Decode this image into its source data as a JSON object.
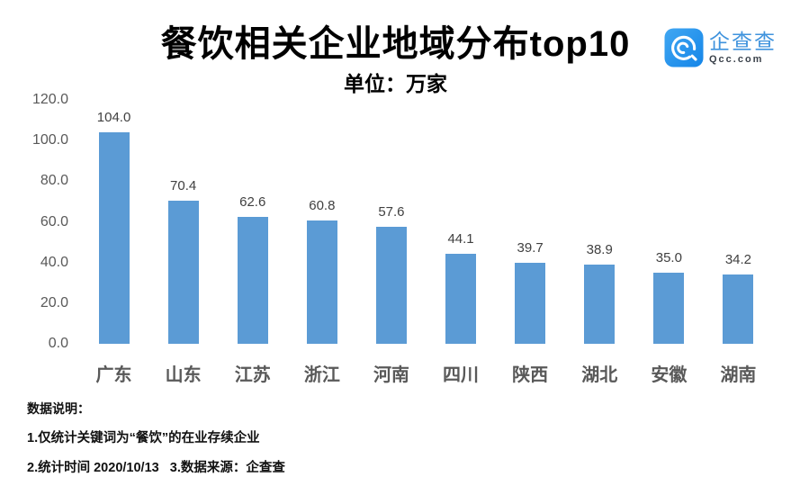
{
  "header": {
    "title": "餐饮相关企业地域分布top10",
    "subtitle": "单位：万家"
  },
  "logo": {
    "name": "企查查",
    "domain": "Qcc.com",
    "brand_color": "#2492e6"
  },
  "chart_data": {
    "type": "bar",
    "title": "餐饮相关企业地域分布top10",
    "unit_label": "单位：万家",
    "categories": [
      "广东",
      "山东",
      "江苏",
      "浙江",
      "河南",
      "四川",
      "陕西",
      "湖北",
      "安徽",
      "湖南"
    ],
    "values": [
      104.0,
      70.4,
      62.6,
      60.8,
      57.6,
      44.1,
      39.7,
      38.9,
      35.0,
      34.2
    ],
    "value_labels": [
      "104.0",
      "70.4",
      "62.6",
      "60.8",
      "57.6",
      "44.1",
      "39.7",
      "38.9",
      "35.0",
      "34.2"
    ],
    "xlabel": "",
    "ylabel": "",
    "ylim": [
      0,
      120
    ],
    "yticks": [
      "120.0",
      "100.0",
      "80.0",
      "60.0",
      "40.0",
      "20.0",
      "0.0"
    ],
    "grid": false,
    "legend": false,
    "bar_color": "#5b9bd5"
  },
  "notes": {
    "heading": "数据说明：",
    "lines": [
      "1.仅统计关键词为“餐饮”的在业存续企业",
      "2.统计时间 2020/10/13   3.数据来源：企查查"
    ]
  }
}
